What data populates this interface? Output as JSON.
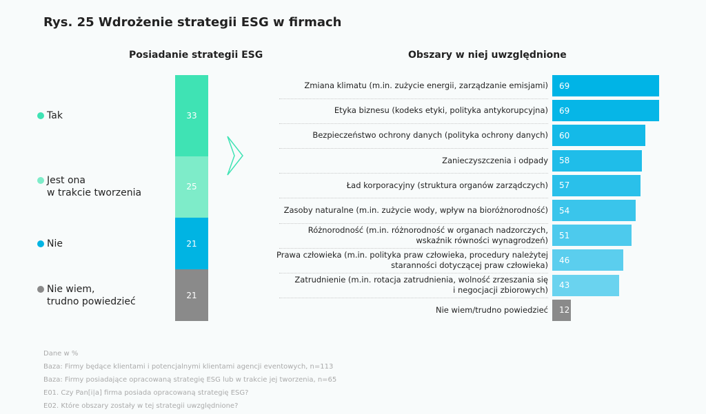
{
  "title": "Rys. 25 Wdrożenie strategii ESG w firmach",
  "chart_data": [
    {
      "type": "bar",
      "stacked": true,
      "title": "Posiadanie strategii ESG",
      "categories": [
        "Tak",
        "Jest ona w trakcie tworzenia",
        "Nie",
        "Nie wiem, trudno powiedzieć"
      ],
      "legend_lines": [
        [
          "Tak"
        ],
        [
          "Jest ona",
          "w trakcie tworzenia"
        ],
        [
          "Nie"
        ],
        [
          "Nie wiem,",
          "trudno powiedzieć"
        ]
      ],
      "values": [
        33,
        25,
        21,
        21
      ],
      "colors": [
        "#3fe3b4",
        "#7eecc9",
        "#00b4e3",
        "#8a8a8a"
      ],
      "legend_placement": "left"
    },
    {
      "type": "bar",
      "orientation": "horizontal",
      "title": "Obszary w niej uwzględnione",
      "categories": [
        [
          "Zmiana klimatu (m.in. zużycie energii, zarządzanie emisjami)"
        ],
        [
          "Etyka biznesu (kodeks etyki, polityka antykorupcyjna)"
        ],
        [
          "Bezpieczeństwo ochrony danych (polityka ochrony danych)"
        ],
        [
          "Zanieczyszczenia i odpady"
        ],
        [
          "Ład korporacyjny (struktura organów zarządczych)"
        ],
        [
          "Zasoby naturalne (m.in. zużycie wody, wpływ na bioróżnorodność)"
        ],
        [
          "Różnorodność (m.in. różnorodność w organach nadzorczych,",
          "wskaźnik równości wynagrodzeń)"
        ],
        [
          "Prawa człowieka (m.in. polityka praw człowieka, procedury należytej",
          "staranności dotyczącej praw człowieka)"
        ],
        [
          "Zatrudnienie (m.in. rotacja zatrudnienia, wolność zrzeszania się",
          "i negocjacji zbiorowych)"
        ],
        [
          "Nie wiem/trudno powiedzieć"
        ]
      ],
      "values": [
        69,
        69,
        60,
        58,
        57,
        54,
        51,
        46,
        43,
        12
      ],
      "colors": [
        "#00b4e6",
        "#06b6e7",
        "#14bae8",
        "#1fbde9",
        "#2ac0ea",
        "#3ac5eb",
        "#4dcaed",
        "#5bceee",
        "#6ad3ef",
        "#8a8a8a"
      ]
    }
  ],
  "footnotes": [
    "Dane w %",
    "Baza: Firmy będące klientami i potencjalnymi klientami agencji eventowych, n=113",
    "Baza: Firmy posiadające opracowaną strategię ESG lub w trakcie jej tworzenia, n=65",
    "E01. Czy Pan[i|a] firma posiada opracowaną strategię ESG?",
    "E02. Które obszary zostały w tej strategii uwzględnione?"
  ]
}
